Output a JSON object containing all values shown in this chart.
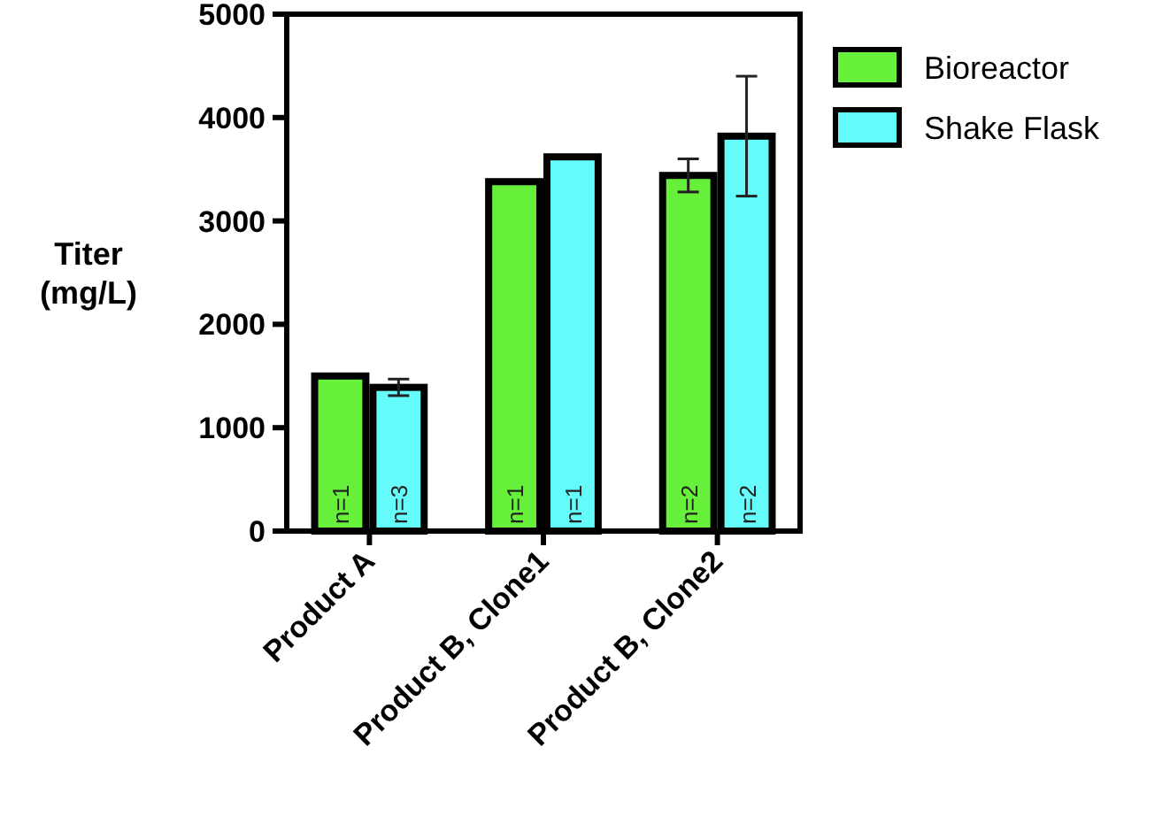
{
  "chart_data": {
    "type": "bar",
    "ylabel": "Titer\n(mg/L)",
    "categories": [
      "Product A",
      "Product B, Clone1",
      "Product B, Clone2"
    ],
    "series": [
      {
        "name": "Bioreactor",
        "color": "#66f03a",
        "values": [
          1500,
          3380,
          3440
        ],
        "errors": [
          null,
          null,
          160
        ]
      },
      {
        "name": "Shake Flask",
        "color": "#66fbfb",
        "values": [
          1390,
          3620,
          3820
        ],
        "errors": [
          80,
          null,
          580
        ]
      }
    ],
    "annotations": [
      "n=1",
      "n=3",
      "n=1",
      "n=1",
      "n=2",
      "n=2"
    ],
    "ylim": [
      0,
      5000
    ],
    "yticks": [
      0,
      1000,
      2000,
      3000,
      4000,
      5000
    ],
    "legend": "right"
  }
}
